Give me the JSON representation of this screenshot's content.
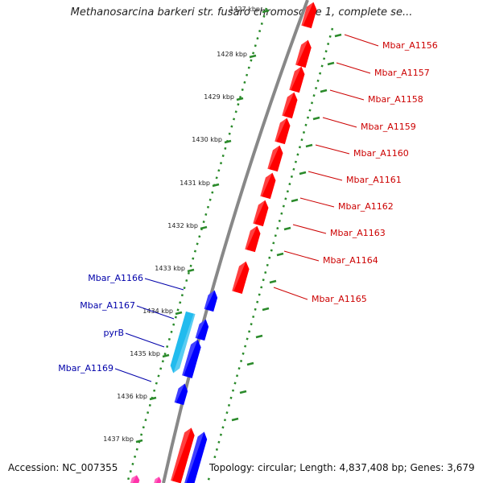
{
  "title": "Methanosarcina barkeri str. fusaro chromosome 1, complete se...",
  "accession": "Accession: NC_007355",
  "summary": "Topology: circular; Length: 4,837,408 bp; Genes: 3,679",
  "ticks": [
    "1427 kbp",
    "1428 kbp",
    "1429 kbp",
    "1430 kbp",
    "1431 kbp",
    "1432 kbp",
    "1433 kbp",
    "1434 kbp",
    "1435 kbp",
    "1436 kbp",
    "1437 kbp"
  ],
  "genes_right": [
    "Mbar_A1156",
    "Mbar_A1157",
    "Mbar_A1158",
    "Mbar_A1159",
    "Mbar_A1160",
    "Mbar_A1161",
    "Mbar_A1162",
    "Mbar_A1163",
    "Mbar_A1164",
    "Mbar_A1165"
  ],
  "genes_left": [
    "Mbar_A1166",
    "Mbar_A1167",
    "pyrB",
    "Mbar_A1169"
  ],
  "colors": {
    "forward_cds": "#ff0000",
    "reverse_cds": "#0000ff",
    "rna_like": "#22bbee",
    "backbone": "#888888",
    "tick": "#2a8a2a",
    "right_label": "#cc0000",
    "left_label": "#0000aa",
    "other_feature": "#ff33aa"
  }
}
